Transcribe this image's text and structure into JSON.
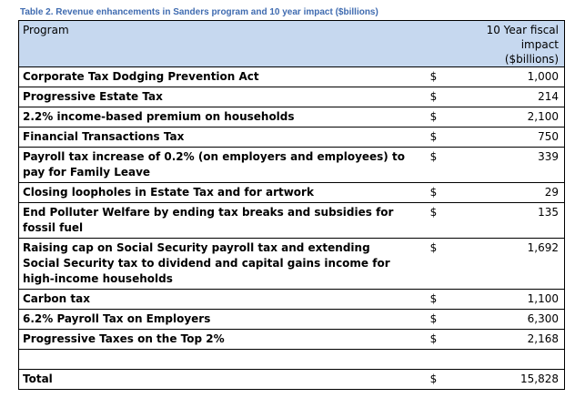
{
  "caption": "Table 2.  Revenue enhancements in Sanders program and 10 year impact ($billions)",
  "header": {
    "program": "Program",
    "impact_line1": "10 Year fiscal impact",
    "impact_line2": "($billions)"
  },
  "rows": [
    {
      "program": "Corporate Tax Dodging Prevention Act",
      "currency": "$",
      "impact": "1,000"
    },
    {
      "program": "Progressive Estate Tax",
      "currency": "$",
      "impact": "214"
    },
    {
      "program": "2.2% income-based premium on households",
      "currency": "$",
      "impact": "2,100"
    },
    {
      "program": "Financial Transactions Tax",
      "currency": "$",
      "impact": "750"
    },
    {
      "program": "Payroll tax increase of 0.2% (on employers and employees) to pay for Family Leave",
      "currency": "$",
      "impact": "339"
    },
    {
      "program": "Closing loopholes in Estate Tax and for artwork",
      "currency": "$",
      "impact": "29"
    },
    {
      "program": "End Polluter Welfare by ending tax breaks and subsidies for fossil fuel",
      "currency": "$",
      "impact": "135"
    },
    {
      "program": "Raising cap on Social Security payroll tax and extending Social Security tax to dividend and capital gains income for high-income households",
      "currency": "$",
      "impact": "1,692"
    },
    {
      "program": "Carbon tax",
      "currency": "$",
      "impact": "1,100"
    },
    {
      "program": "6.2% Payroll Tax on Employers",
      "currency": "$",
      "impact": "6,300"
    },
    {
      "program": "Progressive Taxes on the Top 2%",
      "currency": "$",
      "impact": "2,168"
    }
  ],
  "total": {
    "program": "Total",
    "currency": "$",
    "impact": "15,828"
  },
  "colors": {
    "caption": "#3f6bb0",
    "header_bg": "#c6d8ef"
  }
}
